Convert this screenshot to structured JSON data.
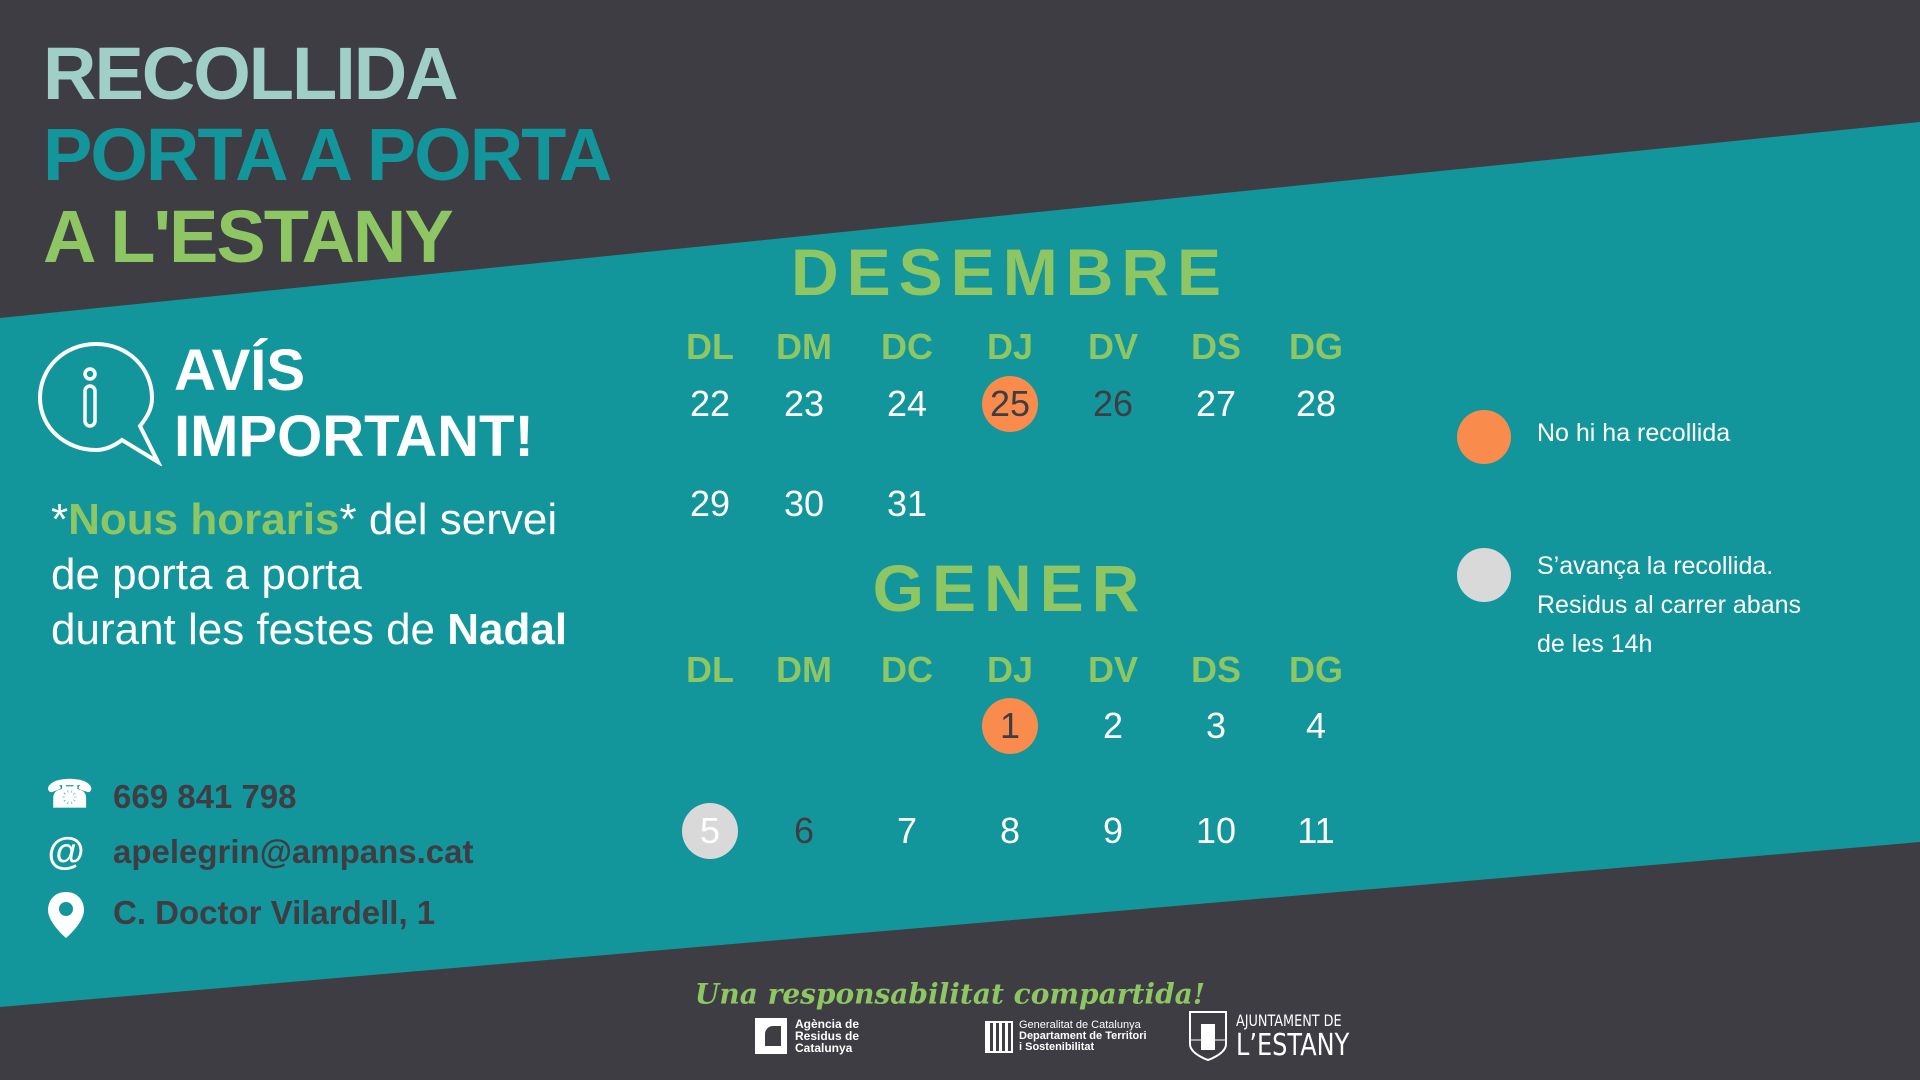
{
  "title": {
    "line1": "RECOLLIDA",
    "line2": "PORTA A PORTA",
    "line3": "A L'ESTANY"
  },
  "colors": {
    "background": "#3e3d43",
    "band": "#12969b",
    "green": "#8dc663",
    "title_light": "#9fcfc7",
    "no_collection": "#f98b4d",
    "advanced": "#d9d9d9"
  },
  "notice": {
    "heading1": "AVÍS",
    "heading2": "IMPORTANT!",
    "icon": "info-speech-bubble-icon",
    "body_star_open": "*",
    "body_highlight": "Nous horaris",
    "body_star_close": "*",
    "body_rest1": " del servei",
    "body_line2": "de porta a porta",
    "body_line3_pre": "durant les festes de ",
    "body_line3_bold": "Nadal"
  },
  "contacts": {
    "phone": "669 841 798",
    "email": "apelegrin@ampans.cat",
    "address": "C. Doctor Vilardell, 1"
  },
  "calendar": {
    "weekdays": [
      "DL",
      "DM",
      "DC",
      "DJ",
      "DV",
      "DS",
      "DG"
    ],
    "december": {
      "name": "DESEMBRE",
      "weeks": [
        [
          {
            "d": "22"
          },
          {
            "d": "23"
          },
          {
            "d": "24"
          },
          {
            "d": "25",
            "s": "orange"
          },
          {
            "d": "26",
            "s": "dark"
          },
          {
            "d": "27"
          },
          {
            "d": "28"
          }
        ],
        [
          {
            "d": "29"
          },
          {
            "d": "30"
          },
          {
            "d": "31"
          }
        ]
      ]
    },
    "january": {
      "name": "GENER",
      "weeks": [
        [
          null,
          null,
          null,
          {
            "d": "1",
            "s": "orange"
          },
          {
            "d": "2"
          },
          {
            "d": "3"
          },
          {
            "d": "4"
          }
        ],
        [
          {
            "d": "5",
            "s": "grey"
          },
          {
            "d": "6",
            "s": "dark"
          },
          {
            "d": "7"
          },
          {
            "d": "8"
          },
          {
            "d": "9"
          },
          {
            "d": "10"
          },
          {
            "d": "11"
          }
        ]
      ]
    }
  },
  "legend": {
    "no_collection": "No hi ha recollida",
    "advanced_line1": "S’avança la recollida.",
    "advanced_line2": "Residus al carrer abans",
    "advanced_line3": "de les 14h"
  },
  "footer": {
    "slogan": "Una responsabilitat compartida!",
    "logo1": [
      "Agència de",
      "Residus de",
      "Catalunya"
    ],
    "logo2": [
      "Generalitat de Catalunya",
      "Departament de Territori",
      "i Sostenibilitat"
    ],
    "logo3": [
      "AJUNTAMENT DE",
      "L’ESTANY"
    ]
  }
}
